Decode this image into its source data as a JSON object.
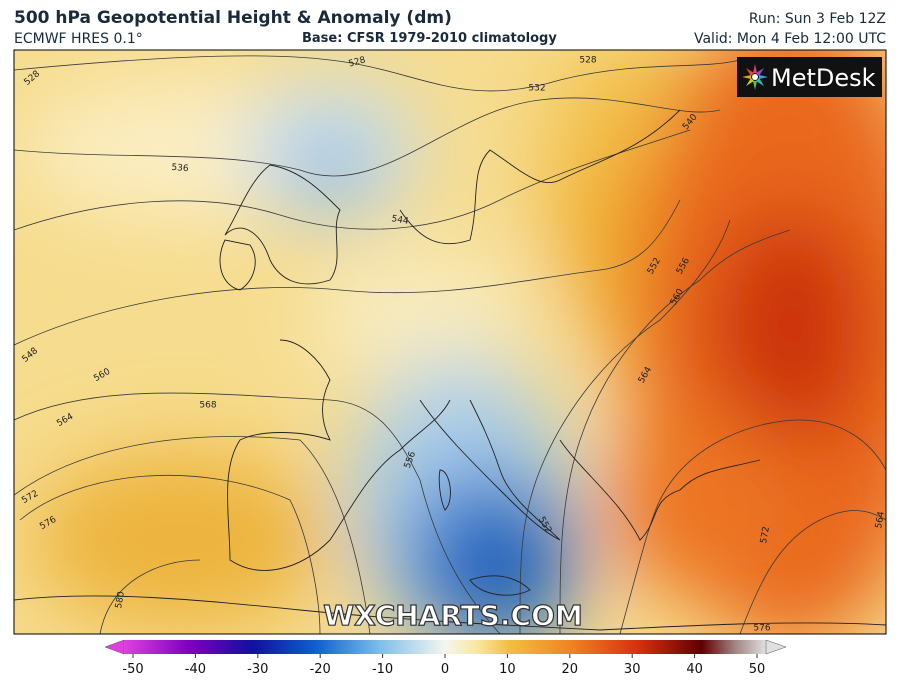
{
  "header": {
    "title": "500 hPa Geopotential Height & Anomaly (dm)",
    "model": "ECMWF HRES 0.1°",
    "base": "Base: CFSR 1979-2010 climatology",
    "run": "Run: Sun 3 Feb 12Z",
    "valid": "Valid: Mon 4 Feb 12:00 UTC"
  },
  "logo": "MetDesk",
  "watermark": "WXCHARTS.COM",
  "contour_labels": [
    528,
    528,
    528,
    532,
    536,
    540,
    544,
    548,
    552,
    552,
    556,
    556,
    560,
    560,
    564,
    564,
    564,
    568,
    572,
    572,
    576,
    576,
    580
  ],
  "colorbar": {
    "ticks": [
      -50,
      -40,
      -30,
      -20,
      -10,
      0,
      10,
      20,
      30,
      40,
      50
    ]
  }
}
